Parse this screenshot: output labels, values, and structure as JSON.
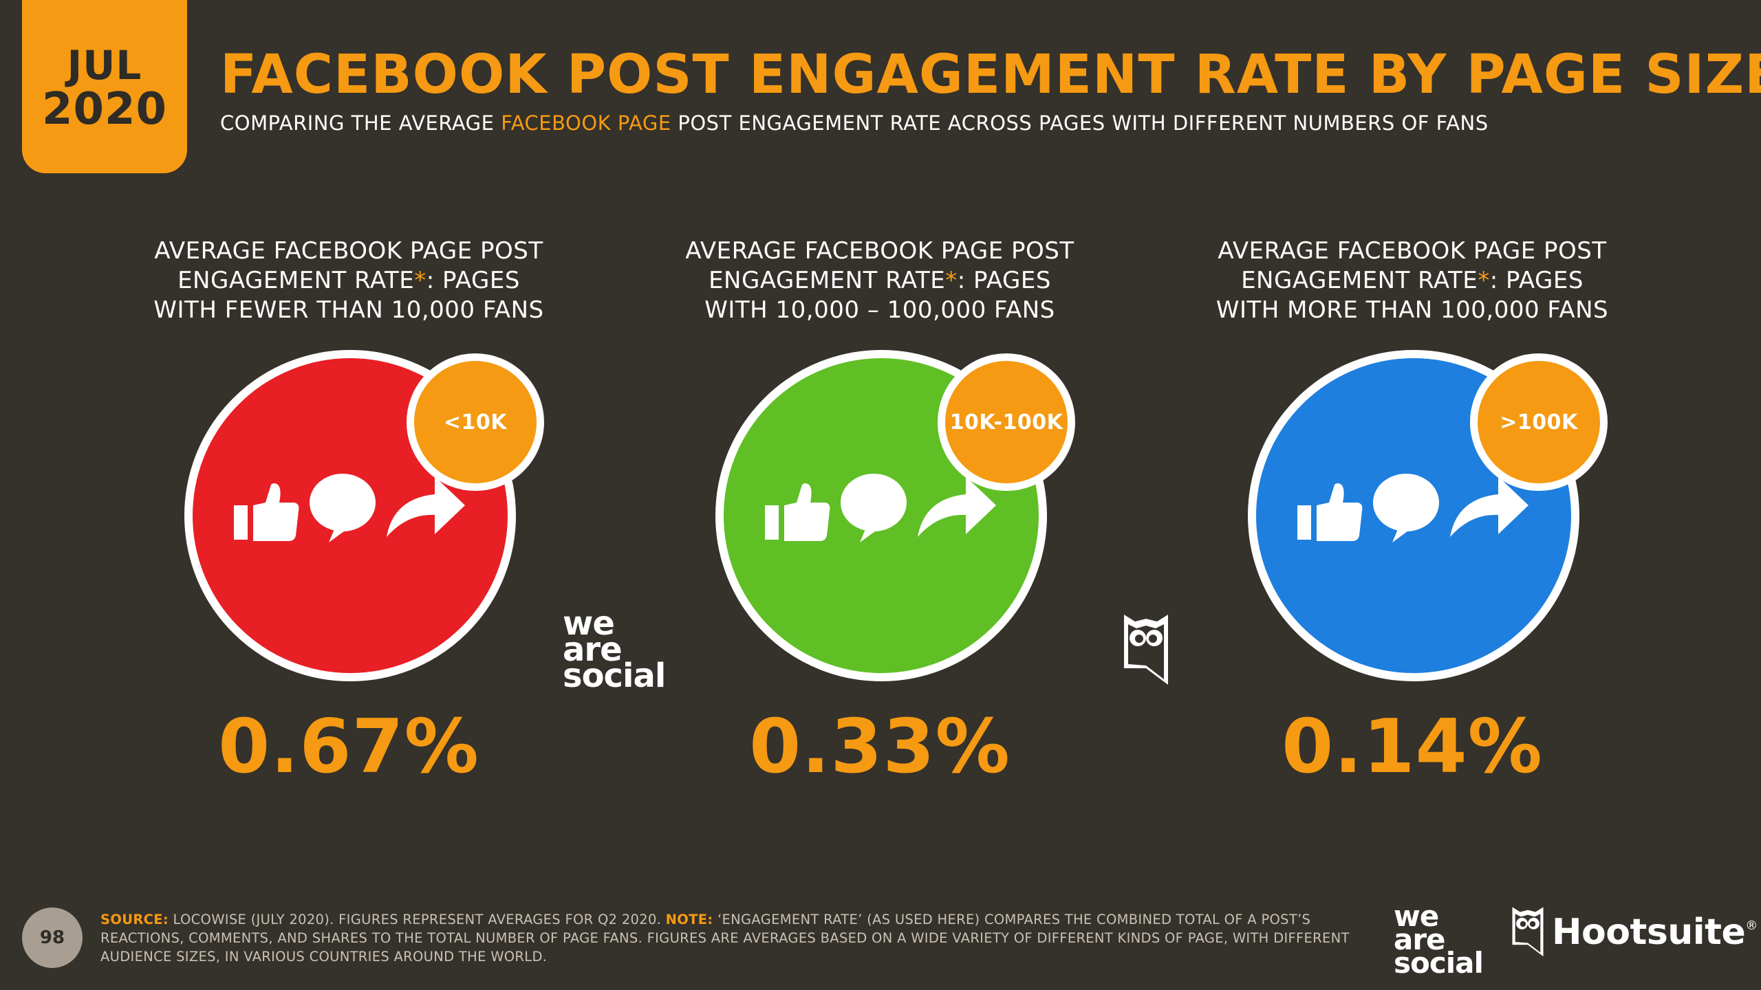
{
  "date": {
    "month": "JUL",
    "year": "2020"
  },
  "header": {
    "title": "FACEBOOK POST ENGAGEMENT RATE BY PAGE SIZE",
    "subtitle_before": "COMPARING THE AVERAGE ",
    "subtitle_highlight": "FACEBOOK PAGE",
    "subtitle_after": " POST ENGAGEMENT RATE ACROSS PAGES WITH DIFFERENT NUMBERS OF FANS"
  },
  "columns": [
    {
      "caption_line1": "AVERAGE FACEBOOK PAGE POST",
      "caption_line2_before": "ENGAGEMENT RATE",
      "caption_star": "*",
      "caption_line2_after": ": PAGES",
      "caption_line3": "WITH FEWER THAN 10,000 FANS",
      "badge": "<10K",
      "value": "0.67%",
      "color": "#e81f25"
    },
    {
      "caption_line1": "AVERAGE FACEBOOK PAGE POST",
      "caption_line2_before": "ENGAGEMENT RATE",
      "caption_star": "*",
      "caption_line2_after": ": PAGES",
      "caption_line3": "WITH 10,000 – 100,000 FANS",
      "badge": "10K-100K",
      "value": "0.33%",
      "color": "#5fbf25"
    },
    {
      "caption_line1": "AVERAGE FACEBOOK PAGE POST",
      "caption_line2_before": "ENGAGEMENT RATE",
      "caption_star": "*",
      "caption_line2_after": ": PAGES",
      "caption_line3": "WITH MORE THAN 100,000 FANS",
      "badge": ">100K",
      "value": "0.14%",
      "color": "#1e7fde"
    }
  ],
  "icons": [
    "thumbs-up-icon",
    "speech-bubble-icon",
    "share-arrow-icon"
  ],
  "brand": {
    "we_are_social": [
      "we",
      "are",
      "social"
    ],
    "hootsuite": "Hootsuite",
    "registered": "®"
  },
  "footer": {
    "page_number": "98",
    "source_label": "SOURCE:",
    "source_text": " LOCOWISE (JULY 2020). FIGURES REPRESENT AVERAGES FOR Q2 2020. ",
    "note_label": "NOTE:",
    "note_text": " ‘ENGAGEMENT RATE’ (AS USED HERE) COMPARES THE COMBINED TOTAL OF A POST’S REACTIONS, COMMENTS, AND SHARES TO THE TOTAL NUMBER OF PAGE FANS. FIGURES ARE AVERAGES BASED ON A WIDE VARIETY OF DIFFERENT KINDS OF PAGE, WITH DIFFERENT AUDIENCE SIZES, IN VARIOUS COUNTRIES AROUND THE WORLD."
  },
  "colors": {
    "accent": "#f59a12",
    "background": "#35312b"
  }
}
